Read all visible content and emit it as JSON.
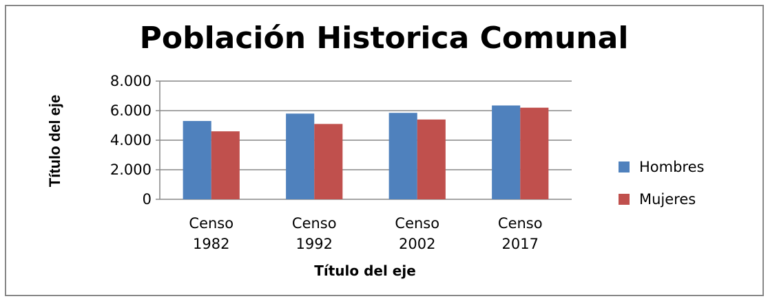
{
  "chart_data": {
    "type": "bar",
    "title": "Población Historica Comunal",
    "x_label": "Título del eje",
    "y_label": "Título del eje",
    "categories": [
      "Censo 1982",
      "Censo 1992",
      "Censo 2002",
      "Censo 2017"
    ],
    "series": [
      {
        "name": "Hombres",
        "color": "#4f81bd",
        "values": [
          5300,
          5800,
          5850,
          6350
        ]
      },
      {
        "name": "Mujeres",
        "color": "#c0504d",
        "values": [
          4600,
          5100,
          5400,
          6200
        ]
      }
    ],
    "ylim": [
      0,
      8000
    ],
    "yticks": [
      0,
      {
        "value": 2000,
        "label": "2.000"
      },
      {
        "value": 4000,
        "label": "4.000"
      },
      {
        "value": 6000,
        "label": "6.000"
      },
      {
        "value": 8000,
        "label": "8.000"
      }
    ],
    "grid": true,
    "legend": "right"
  }
}
